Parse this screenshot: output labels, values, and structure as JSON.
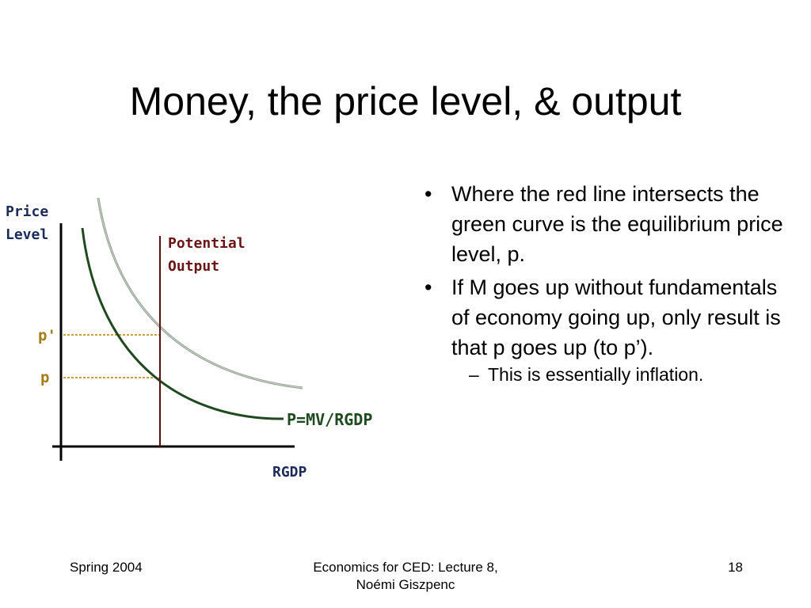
{
  "slide": {
    "title": "Money, the price level, & output"
  },
  "figure": {
    "y_axis_label_line1": "Price",
    "y_axis_label_line2": "Level",
    "x_axis_label": "RGDP",
    "potential_label_line1": "Potential",
    "potential_label_line2": "Output",
    "curve_label": "P=MV/RGDP",
    "p_prime_label": "p'",
    "p_label": "p",
    "colors": {
      "axis": "#000000",
      "axis_labels": "#1a2a5a",
      "potential_line": "#5a0e0e",
      "potential_text": "#6b1414",
      "price_labels": "#a87a14",
      "dashed": "#c8a040",
      "curve_dark": "#1f4a1f",
      "curve_light": "#8a9a8a",
      "curve_label": "#1f4a1f"
    }
  },
  "bullets": [
    "Where the red line intersects the green curve is the equilibrium price level, p.",
    "If M goes up without fundamentals of economy going up, only result is that p goes up (to p’)."
  ],
  "sub_bullets": [
    "This is essentially inflation."
  ],
  "footer": {
    "left": "Spring 2004",
    "center_line1": "Economics for CED: Lecture 8,",
    "center_line2": "Noémi Giszpenc",
    "page_number": "18"
  }
}
